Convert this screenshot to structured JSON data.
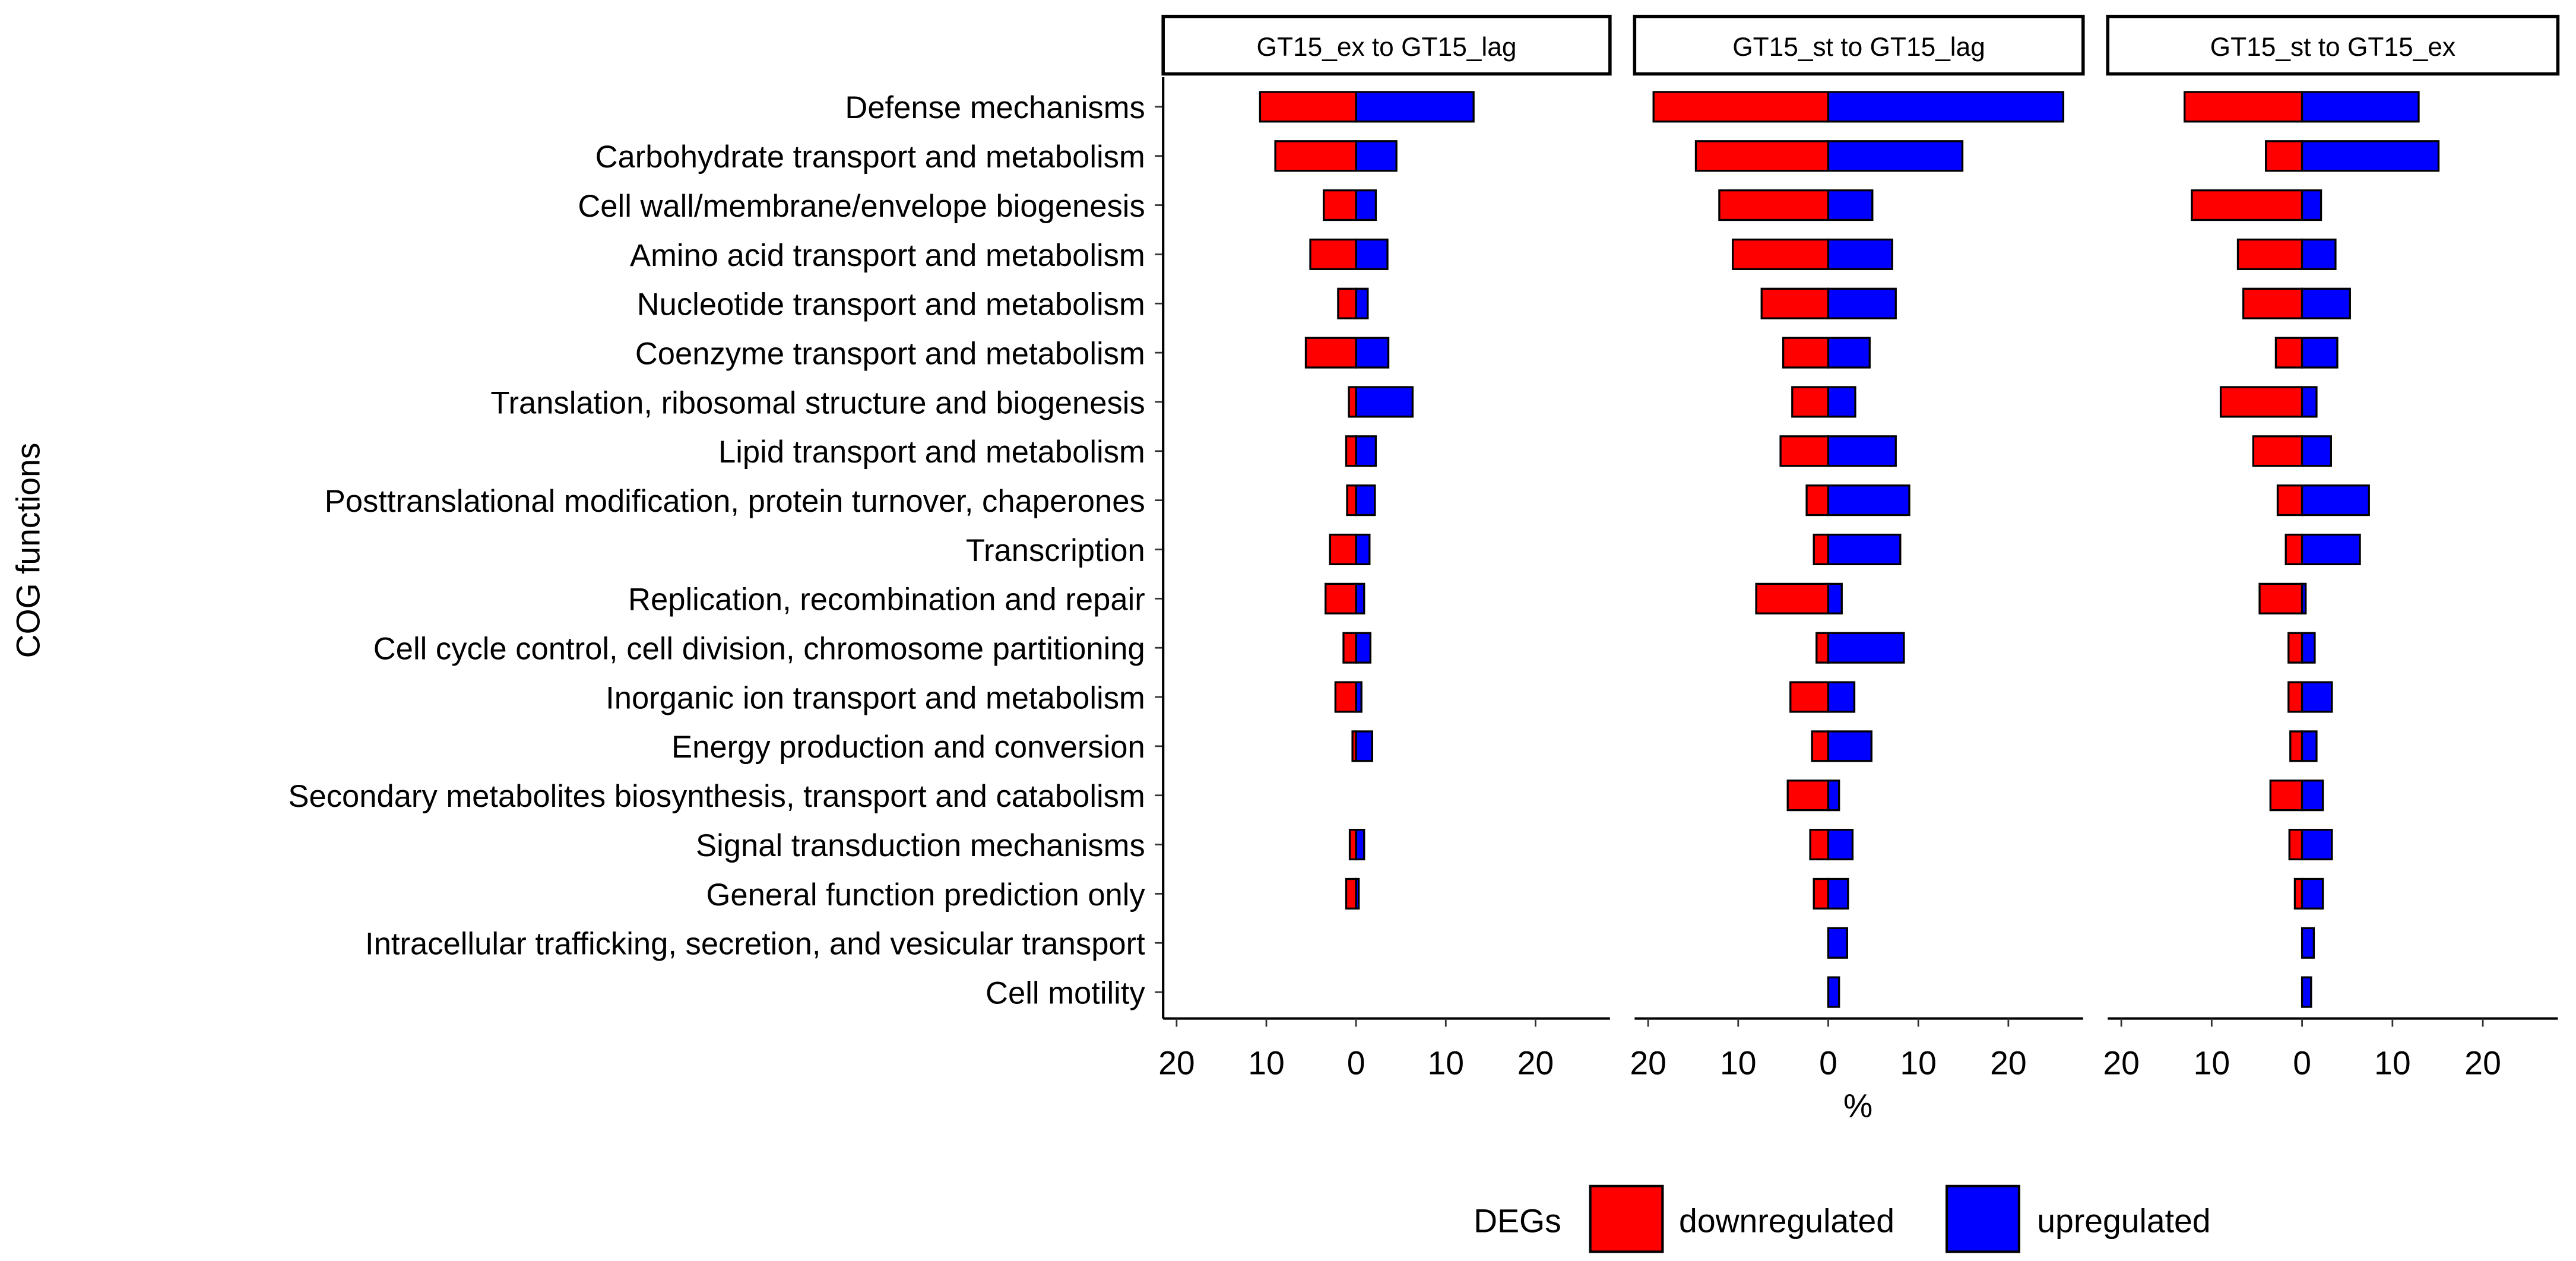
{
  "chart_data": {
    "type": "bar",
    "orientation": "horizontal",
    "subtype": "diverging-faceted",
    "ylabel": "COG functions",
    "xlabel": "%",
    "xlim": [
      -21.5,
      28.3
    ],
    "x_ticks": [
      -20,
      -10,
      0,
      10,
      20
    ],
    "tick_labels": [
      "20",
      "10",
      "0",
      "10",
      "20"
    ],
    "grid": false,
    "legend": {
      "title": "DEGs",
      "placement": "bottom",
      "entries": [
        "downregulated",
        "upregulated"
      ]
    },
    "colors": {
      "downregulated": "#ff0000",
      "upregulated": "#0000ff"
    },
    "categories": [
      "Defense mechanisms",
      "Carbohydrate transport and metabolism",
      "Cell wall/membrane/envelope biogenesis",
      "Amino acid transport and metabolism",
      "Nucleotide transport and metabolism",
      "Coenzyme transport and metabolism",
      "Translation, ribosomal structure and biogenesis",
      "Lipid transport and metabolism",
      "Posttranslational modification, protein turnover, chaperones",
      "Transcription",
      "Replication, recombination and repair",
      "Cell cycle control, cell division, chromosome partitioning",
      "Inorganic ion transport and metabolism",
      "Energy production and conversion",
      "Secondary metabolites biosynthesis, transport and catabolism",
      "Signal transduction mechanisms",
      "General function prediction only",
      "Intracellular trafficking, secretion, and vesicular transport",
      "Cell motility"
    ],
    "panels": [
      {
        "title": "GT15_ex to GT15_lag",
        "downregulated": [
          10.7,
          9.0,
          3.6,
          5.1,
          2.0,
          5.6,
          0.8,
          1.1,
          1.0,
          2.9,
          3.4,
          1.4,
          2.3,
          0.4,
          0,
          0.7,
          1.1,
          0,
          0
        ],
        "upregulated": [
          13.1,
          4.5,
          2.2,
          3.5,
          1.3,
          3.6,
          6.3,
          2.2,
          2.1,
          1.5,
          0.9,
          1.6,
          0.6,
          1.8,
          0,
          0.9,
          0.3,
          0,
          0
        ]
      },
      {
        "title": "GT15_st to GT15_lag",
        "downregulated": [
          19.4,
          14.7,
          12.1,
          10.6,
          7.4,
          5.0,
          4.0,
          5.3,
          2.4,
          1.6,
          8.0,
          1.3,
          4.2,
          1.8,
          4.5,
          2.0,
          1.6,
          0,
          0
        ],
        "upregulated": [
          26.1,
          14.9,
          4.9,
          7.1,
          7.5,
          4.6,
          3.0,
          7.5,
          9.0,
          8.0,
          1.5,
          8.4,
          2.9,
          4.8,
          1.2,
          2.7,
          2.2,
          2.1,
          1.2
        ]
      },
      {
        "title": "GT15_st to GT15_ex",
        "downregulated": [
          13.0,
          4.0,
          12.2,
          7.1,
          6.5,
          2.9,
          9.0,
          5.4,
          2.7,
          1.8,
          4.7,
          1.5,
          1.5,
          1.3,
          3.5,
          1.4,
          0.8,
          0,
          0
        ],
        "upregulated": [
          12.9,
          15.1,
          2.1,
          3.7,
          5.3,
          3.9,
          1.6,
          3.2,
          7.4,
          6.4,
          0.4,
          1.4,
          3.3,
          1.6,
          2.3,
          3.3,
          2.3,
          1.3,
          1.0
        ]
      }
    ]
  }
}
